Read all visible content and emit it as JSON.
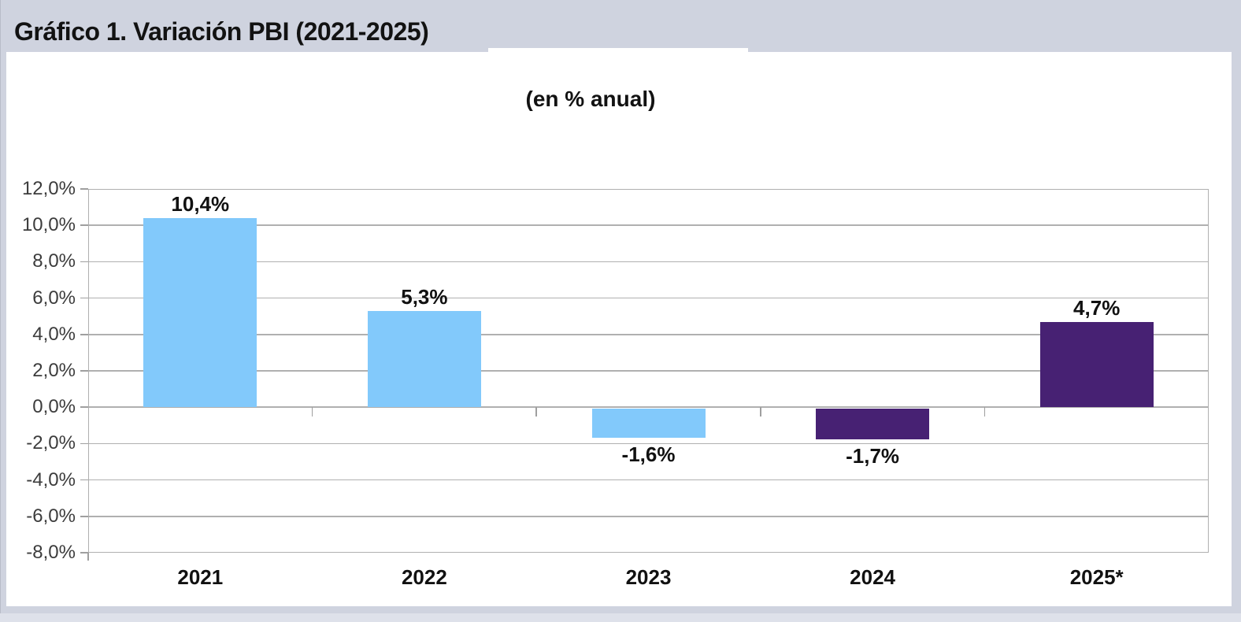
{
  "header": {
    "title": "Gráfico 1. Variación PBI (2021-2025)"
  },
  "chart_data": {
    "type": "bar",
    "title": "Gráfico 1. Variación PBI (2021-2025)",
    "subtitle": "(en % anual)",
    "categories": [
      "2021",
      "2022",
      "2023",
      "2024",
      "2025*"
    ],
    "values": [
      10.4,
      5.3,
      -1.6,
      -1.7,
      4.7
    ],
    "value_labels": [
      "10,4%",
      "5,3%",
      "-1,6%",
      "-1,7%",
      "4,7%"
    ],
    "bar_colors": [
      "#82c9fb",
      "#82c9fb",
      "#82c9fb",
      "#472173",
      "#472173"
    ],
    "xlabel": "",
    "ylabel": "",
    "ylim": [
      -8,
      12
    ],
    "ytick_step": 2,
    "ytick_labels": [
      "12,0%",
      "10,0%",
      "8,0%",
      "6,0%",
      "4,0%",
      "2,0%",
      "0,0%",
      "-2,0%",
      "-4,0%",
      "-6,0%",
      "-8,0%"
    ],
    "grid": true,
    "legend_position": "none"
  },
  "colors": {
    "background": "#cfd3df",
    "panel": "#ffffff",
    "gridline": "#b0b0b0",
    "axis_text": "#3c3c3c",
    "label_text": "#111111",
    "bar_blue": "#82c9fb",
    "bar_purple": "#472173"
  }
}
